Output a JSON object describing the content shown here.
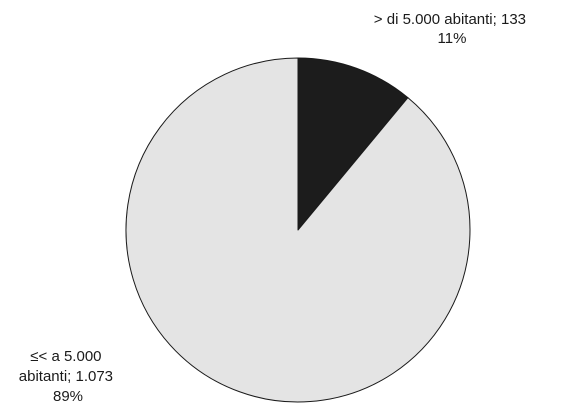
{
  "chart_data": {
    "type": "pie",
    "start_angle": "12 o'clock",
    "direction": "clockwise",
    "slices": [
      {
        "label_line1": "> di 5.000 abitanti; 133",
        "label_line2": "11%",
        "category": "> di 5.000 abitanti",
        "value": 133,
        "percent": "11%",
        "color": "#1c1c1c"
      },
      {
        "label_line1": "≤< a 5.000",
        "label_line2": "abitanti; 1.073",
        "label_line3": "89%",
        "category": "≤< a 5.000 abitanti",
        "value": 1073,
        "percent": "89%",
        "color": "#e4e4e4"
      }
    ]
  }
}
